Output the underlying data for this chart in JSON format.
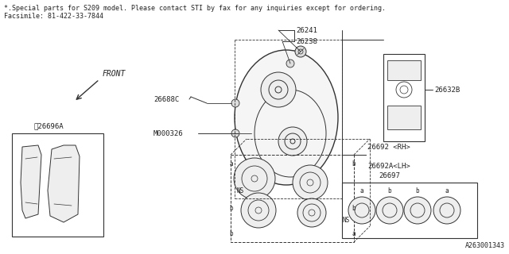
{
  "bg_color": "#ffffff",
  "line_color": "#333333",
  "title_line1": "*.Special parts for S209 model. Please contact STI by fax for any inquiries except for ordering.",
  "title_line2": "Facsimile: 81-422-33-7844",
  "part_number_bottom_right": "A263001343",
  "font_size_header": 6.5,
  "font_size_label": 6.5,
  "font_size_small": 5.0
}
